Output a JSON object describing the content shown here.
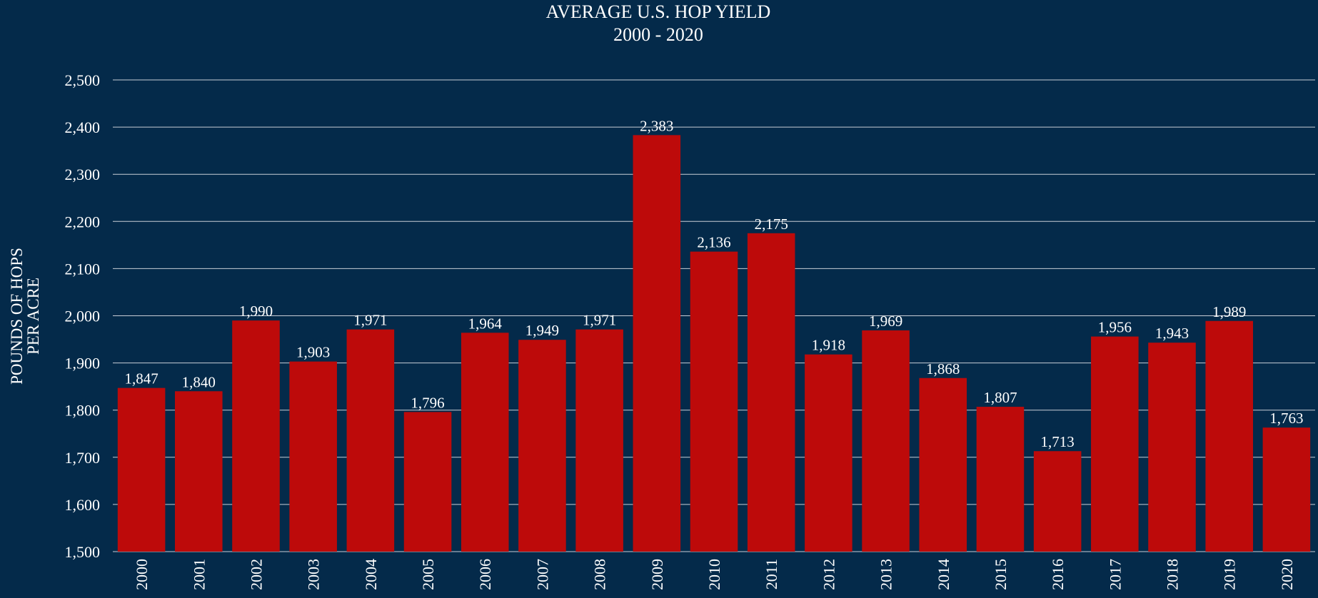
{
  "chart_data": {
    "type": "bar",
    "title": "AVERAGE U.S. HOP YIELD",
    "subtitle": "2000 - 2020",
    "xlabel": "",
    "ylabel_lines": [
      "POUNDS OF HOPS",
      "PER ACRE"
    ],
    "categories": [
      "2000",
      "2001",
      "2002",
      "2003",
      "2004",
      "2005",
      "2006",
      "2007",
      "2008",
      "2009",
      "2010",
      "2011",
      "2012",
      "2013",
      "2014",
      "2015",
      "2016",
      "2017",
      "2018",
      "2019",
      "2020"
    ],
    "values": [
      1847,
      1840,
      1990,
      1903,
      1971,
      1796,
      1964,
      1949,
      1971,
      2383,
      2136,
      2175,
      1918,
      1969,
      1868,
      1807,
      1713,
      1956,
      1943,
      1989,
      1763
    ],
    "value_labels": [
      "1,847",
      "1,840",
      "1,990",
      "1,903",
      "1,971",
      "1,796",
      "1,964",
      "1,949",
      "1,971",
      "2,383",
      "2,136",
      "2,175",
      "1,918",
      "1,969",
      "1,868",
      "1,807",
      "1,713",
      "1,956",
      "1,943",
      "1,989",
      "1,763"
    ],
    "yticks": [
      1500,
      1600,
      1700,
      1800,
      1900,
      2000,
      2100,
      2200,
      2300,
      2400,
      2500
    ],
    "ytick_labels": [
      "1,500",
      "1,600",
      "1,700",
      "1,800",
      "1,900",
      "2,000",
      "2,100",
      "2,200",
      "2,300",
      "2,400",
      "2,500"
    ],
    "ylim": [
      1500,
      2500
    ],
    "grid": true,
    "legend": "none"
  },
  "colors": {
    "background": "#042a4a",
    "bar": "#bd0a0a",
    "grid": "#c8ced6",
    "text": "#ffffff"
  }
}
